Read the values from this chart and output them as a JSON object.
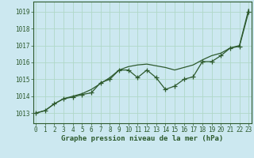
{
  "title": "Graphe pression niveau de la mer (hPa)",
  "background_color": "#cce8f0",
  "grid_color": "#b0d8c8",
  "line_color": "#2d5a2d",
  "x_ticks": [
    0,
    1,
    2,
    3,
    4,
    5,
    6,
    7,
    8,
    9,
    10,
    11,
    12,
    13,
    14,
    15,
    16,
    17,
    18,
    19,
    20,
    21,
    22,
    23
  ],
  "y_ticks": [
    1013,
    1014,
    1015,
    1016,
    1017,
    1018,
    1019
  ],
  "ylim": [
    1012.4,
    1019.6
  ],
  "xlim": [
    -0.3,
    23.3
  ],
  "smooth_x": [
    0,
    1,
    2,
    3,
    4,
    5,
    6,
    7,
    8,
    9,
    10,
    11,
    12,
    13,
    14,
    15,
    16,
    17,
    18,
    19,
    20,
    21,
    22,
    23
  ],
  "smooth_y": [
    1013.0,
    1013.15,
    1013.55,
    1013.85,
    1014.0,
    1014.15,
    1014.4,
    1014.75,
    1015.1,
    1015.55,
    1015.75,
    1015.85,
    1015.9,
    1015.8,
    1015.7,
    1015.55,
    1015.7,
    1015.85,
    1016.15,
    1016.4,
    1016.55,
    1016.85,
    1017.0,
    1019.15
  ],
  "jagged_x": [
    0,
    1,
    2,
    3,
    4,
    5,
    6,
    7,
    8,
    9,
    10,
    11,
    12,
    13,
    14,
    15,
    16,
    17,
    18,
    19,
    20,
    21,
    22,
    23
  ],
  "jagged_y": [
    1013.0,
    1013.15,
    1013.55,
    1013.85,
    1013.95,
    1014.1,
    1014.2,
    1014.8,
    1015.0,
    1015.55,
    1015.55,
    1015.1,
    1015.55,
    1015.1,
    1014.4,
    1014.6,
    1015.0,
    1015.15,
    1016.05,
    1016.05,
    1016.4,
    1016.85,
    1016.95,
    1019.0
  ],
  "font_color": "#2d5a2d",
  "font_size": 5.5,
  "title_font_size": 6.5
}
